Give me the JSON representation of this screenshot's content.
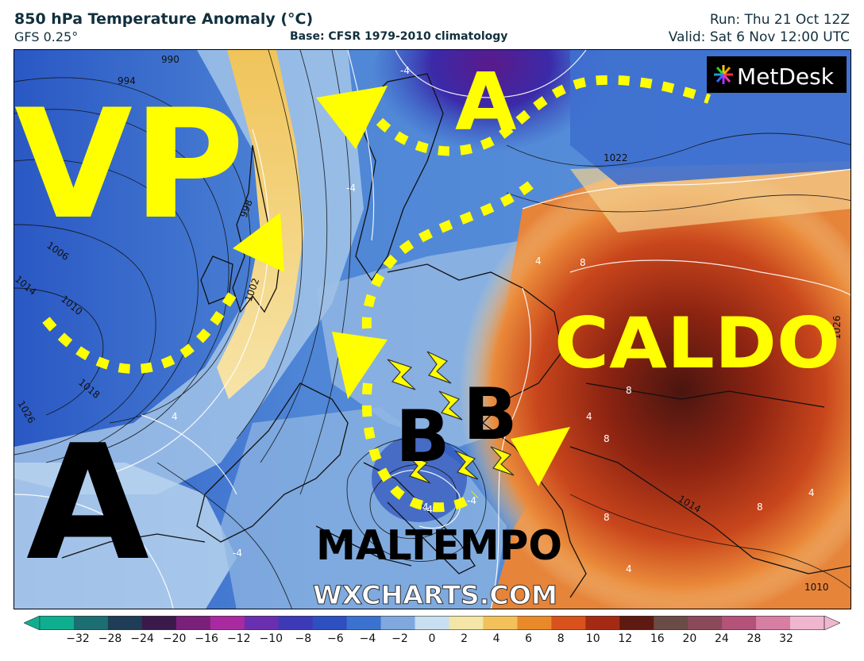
{
  "header": {
    "title": "850 hPa Temperature Anomaly (°C)",
    "model": "GFS 0.25°",
    "base": "Base: CFSR 1979-2010 climatology",
    "run": "Run: Thu 21 Oct 12Z",
    "valid": "Valid: Sat 6 Nov 12:00 UTC"
  },
  "branding": {
    "logo_text": "MetDesk",
    "watermark": "WXCHARTS.COM"
  },
  "annotations": {
    "vp": "VP",
    "a_north": "A",
    "a_southwest": "A",
    "caldo": "CALDO",
    "b1": "B",
    "b2": "B",
    "maltempo": "MALTEMPO"
  },
  "isobar_labels": [
    "990",
    "994",
    "998",
    "1002",
    "1006",
    "1010",
    "1014",
    "1018",
    "1022",
    "1026",
    "1010",
    "1014",
    "1026"
  ],
  "anomaly_labels": [
    "-4",
    "-4",
    "4",
    "8",
    "8",
    "4",
    "8",
    "8",
    "-4",
    "4",
    "4",
    "8",
    "4",
    "-4",
    "4",
    "-4"
  ],
  "colorbar": {
    "unit": "°C",
    "ticks": [
      "−32",
      "−28",
      "−24",
      "−20",
      "−16",
      "−12",
      "−10",
      "−8",
      "−6",
      "−4",
      "−2",
      "0",
      "2",
      "4",
      "6",
      "8",
      "10",
      "12",
      "16",
      "20",
      "24",
      "28",
      "32"
    ],
    "colors": [
      "#0fae8f",
      "#1b6f73",
      "#1f3d56",
      "#3a1a4a",
      "#7a1f7a",
      "#a92aa0",
      "#6a2fb0",
      "#3d3ab8",
      "#2d4fc0",
      "#3b72cf",
      "#7fa9de",
      "#c8dff1",
      "#f3e6a6",
      "#f2c15a",
      "#e98a2a",
      "#d9521e",
      "#a52a14",
      "#5e1a10",
      "#6b4b45",
      "#8a4a5a",
      "#b4527a",
      "#d77ea3",
      "#f1b6cf"
    ]
  },
  "colors": {
    "annotation_yellow": "#ffff00",
    "annotation_black": "#000000",
    "header_text": "#12303e"
  }
}
